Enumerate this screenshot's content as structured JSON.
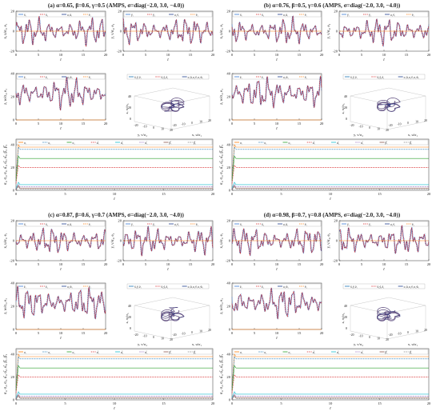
{
  "chart_data": {
    "type": "line",
    "panels": [
      {
        "id": "a",
        "title": "(a) α=0.65, β=0.6, γ=0.5 (AMPS, σ=diag(−2.0, 3.0, −4.0))",
        "coeffs": [
          0.65,
          0.6,
          0.5
        ]
      },
      {
        "id": "b",
        "title": "(b) α=0.76, β=0.5, γ=0.6 (AMPS, σ=diag(−2.0, 3.0, −4.0))",
        "coeffs": [
          0.76,
          0.5,
          0.6
        ]
      },
      {
        "id": "c",
        "title": "(c) α=0.87, β=0.6, γ=0.7 (AMPS, σ=diag(−2.0, 3.0, −4.0))",
        "coeffs": [
          0.87,
          0.6,
          0.7
        ]
      },
      {
        "id": "d",
        "title": "(d) α=0.98, β=0.7, γ=0.8 (AMPS, σ=diag(−2.0, 3.0, −4.0))",
        "coeffs": [
          0.98,
          0.7,
          0.8
        ]
      }
    ],
    "sigma": [
      -2.0,
      3.0,
      -4.0
    ],
    "time_range": [
      0,
      20
    ],
    "time_ticks": [
      0,
      5,
      10,
      15,
      20
    ],
    "state_plots": [
      {
        "ylabel": "x, u/σ₁, e₁",
        "legend": [
          "x̃₁",
          "x̃₂",
          "σ₁ũ₁",
          "ẽ₁"
        ],
        "colors": [
          "#3a7bd5",
          "#d62728",
          "#1f3f8f",
          "#ff7f0e"
        ],
        "yticks": [
          20,
          0,
          -20
        ],
        "ylim": [
          -20,
          20
        ]
      },
      {
        "ylabel": "y, v/σ₂, e₂",
        "legend": [
          "ỹ₁",
          "ỹ₂",
          "σ₂ṽ₁",
          "ẽ₂"
        ],
        "colors": [
          "#3a7bd5",
          "#d62728",
          "#1f3f8f",
          "#ff7f0e"
        ],
        "yticks": [
          20,
          0,
          -20
        ],
        "ylim": [
          -20,
          20
        ]
      },
      {
        "ylabel": "z, w/σ₃, e₃",
        "legend": [
          "z̃₁",
          "z̃₂",
          "σ₃w̃₁",
          "ẽ₃"
        ],
        "colors": [
          "#3a7bd5",
          "#d62728",
          "#1f3f8f",
          "#ff7f0e"
        ],
        "yticks": [
          40,
          20,
          0
        ],
        "ylim": [
          0,
          40
        ]
      }
    ],
    "attractor_plot": {
      "legend": [
        "x̃₁ỹ₁z̃₁",
        "x̃₂ỹ₂z̃₂",
        "σ₁ũ₁σ₂ṽ₁σ₃w̃₁"
      ],
      "xlabel": "x, u/σ₁",
      "ylabel": "y, v/σ₂",
      "zlabel": "z, w/σ₃",
      "xticks": [
        -20,
        -10,
        0,
        10,
        20
      ],
      "yticks": [
        -20,
        -10,
        0,
        10,
        20
      ],
      "zticks": [
        0,
        20,
        40
      ]
    },
    "parameter_plot": {
      "ylabel": "σ₁, σ₂, σ₃, α̂₁, α̂₂, α̂₃, β̂₁, β̂₂",
      "legend": [
        "σ₁",
        "σ₂",
        "σ₃",
        "α̂₁",
        "α̂₂",
        "α̂₃",
        "β̂₁",
        "β̂₂"
      ],
      "colors": [
        "#ff7f0e",
        "#1f77b4",
        "#2ca02c",
        "#d62728",
        "#17becf",
        "#9467bd",
        "#8c564b",
        "#7f7f7f"
      ],
      "yticks": [
        40,
        20,
        0
      ],
      "ylim": [
        0,
        45
      ],
      "steady_values": [
        38,
        36,
        28,
        20,
        5,
        3,
        2,
        1
      ]
    },
    "xlabel": "t"
  }
}
